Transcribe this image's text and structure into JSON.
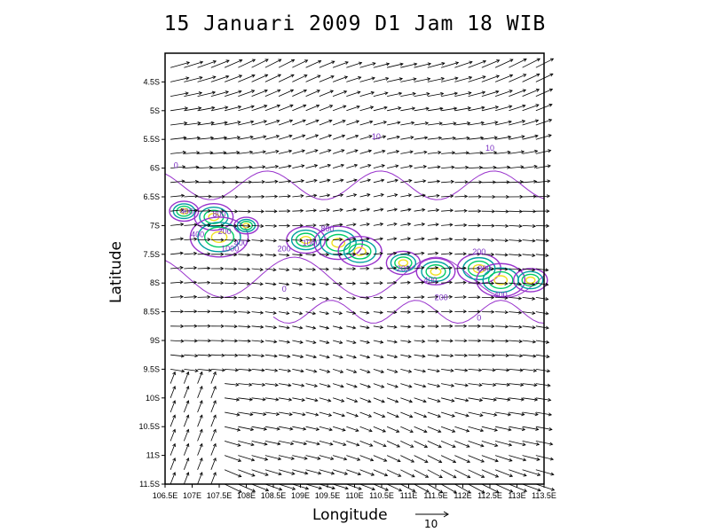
{
  "title": "15 Januari 2009 D1 Jam 18 WIB",
  "xlabel": "Longitude",
  "ylabel": "Latitude",
  "reference_vector": {
    "label": "10",
    "magnitude": 10
  },
  "colors": {
    "frame": "#000000",
    "vectors": "#000000",
    "contour_low": "#9933cc",
    "contour_mid": "#00a0a0",
    "contour_high": "#00cc66",
    "contour_peak": "#f0e020",
    "contour_label": "#7a2ec2"
  },
  "chart_data": {
    "type": "map",
    "description_layers": [
      "wind vectors",
      "contours"
    ],
    "lon_range": [
      106.5,
      113.5
    ],
    "lat_range": [
      -11.5,
      -4.0
    ],
    "x_ticks": [
      "106.5E",
      "107E",
      "107.5E",
      "108E",
      "108.5E",
      "109E",
      "109.5E",
      "110E",
      "110.5E",
      "111E",
      "111.5E",
      "112E",
      "112.5E",
      "113E",
      "113.5E"
    ],
    "y_ticks": [
      "4.5S",
      "5S",
      "5.5S",
      "6S",
      "6.5S",
      "7S",
      "7.5S",
      "8S",
      "8.5S",
      "9S",
      "9.5S",
      "10S",
      "10.5S",
      "11S",
      "11.5S"
    ],
    "contour_labels": [
      {
        "text": "0",
        "lon": 106.7,
        "lat": -6.0
      },
      {
        "text": "10",
        "lon": 110.4,
        "lat": -5.5
      },
      {
        "text": "10",
        "lon": 112.5,
        "lat": -5.7
      },
      {
        "text": "400",
        "lon": 106.9,
        "lat": -6.8
      },
      {
        "text": "800",
        "lon": 107.5,
        "lat": -6.85
      },
      {
        "text": "400",
        "lon": 107.1,
        "lat": -7.2
      },
      {
        "text": "200",
        "lon": 107.6,
        "lat": -7.15
      },
      {
        "text": "1000",
        "lon": 107.7,
        "lat": -7.45
      },
      {
        "text": "400",
        "lon": 107.9,
        "lat": -7.35
      },
      {
        "text": "800",
        "lon": 109.5,
        "lat": -7.1
      },
      {
        "text": "200",
        "lon": 108.7,
        "lat": -7.45
      },
      {
        "text": "1000",
        "lon": 109.2,
        "lat": -7.35
      },
      {
        "text": "0",
        "lon": 108.7,
        "lat": -8.15
      },
      {
        "text": "200",
        "lon": 110.9,
        "lat": -7.8
      },
      {
        "text": "400",
        "lon": 111.4,
        "lat": -8.0
      },
      {
        "text": "200",
        "lon": 111.6,
        "lat": -8.3
      },
      {
        "text": "200",
        "lon": 112.3,
        "lat": -7.5
      },
      {
        "text": "800",
        "lon": 112.4,
        "lat": -7.8
      },
      {
        "text": "400",
        "lon": 112.7,
        "lat": -8.25
      },
      {
        "text": "0",
        "lon": 112.3,
        "lat": -8.65
      }
    ],
    "rain_cells": [
      {
        "lon": 106.85,
        "lat": -6.75,
        "value": 600
      },
      {
        "lon": 107.4,
        "lat": -6.85,
        "value": 800
      },
      {
        "lon": 107.5,
        "lat": -7.2,
        "value": 1200
      },
      {
        "lon": 108.0,
        "lat": -7.0,
        "value": 500
      },
      {
        "lon": 109.1,
        "lat": -7.25,
        "value": 800
      },
      {
        "lon": 109.7,
        "lat": -7.3,
        "value": 1000
      },
      {
        "lon": 110.1,
        "lat": -7.45,
        "value": 900
      },
      {
        "lon": 110.9,
        "lat": -7.65,
        "value": 700
      },
      {
        "lon": 111.5,
        "lat": -7.8,
        "value": 800
      },
      {
        "lon": 112.3,
        "lat": -7.75,
        "value": 900
      },
      {
        "lon": 112.7,
        "lat": -7.95,
        "value": 1000
      },
      {
        "lon": 113.25,
        "lat": -7.95,
        "value": 700
      }
    ]
  }
}
